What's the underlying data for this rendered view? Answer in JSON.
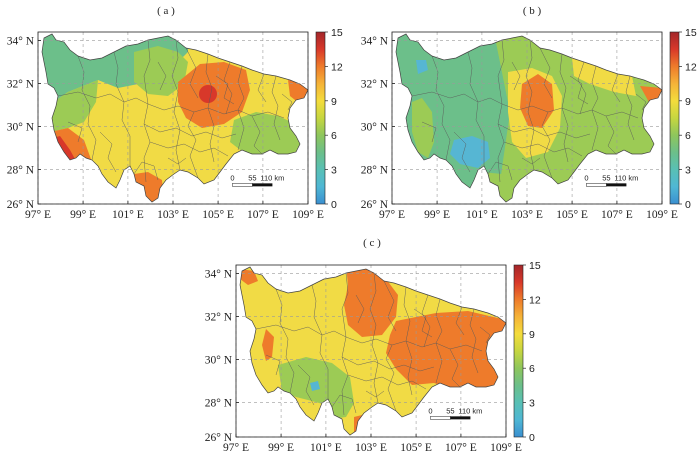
{
  "panels": [
    {
      "label": "( a )"
    },
    {
      "label": "( b )"
    },
    {
      "label": "( c )"
    }
  ],
  "x_ticks": [
    "97° E",
    "99° E",
    "101° E",
    "103° E",
    "105° E",
    "107° E",
    "109° E"
  ],
  "y_ticks": [
    "34° N",
    "32° N",
    "30° N",
    "28° N",
    "26° N"
  ],
  "colorbar": {
    "ticks": [
      "15",
      "12",
      "9",
      "6",
      "3",
      "0"
    ],
    "range": [
      0,
      15
    ],
    "colors": [
      "#3a8fd0",
      "#4fb7d4",
      "#59c0b5",
      "#6cbf8a",
      "#8ec65c",
      "#c6d640",
      "#f4dc3c",
      "#f5b338",
      "#ee7b2b",
      "#d8382a",
      "#a3262a"
    ]
  },
  "scalebar": {
    "ticks": [
      "0",
      "55",
      "110 km"
    ]
  },
  "zone_colors": {
    "teal": "#6cbf8a",
    "tealdeep": "#59b6a6",
    "green": "#9ccb55",
    "yellow": "#f1db45",
    "orange": "#ee7b2b",
    "red": "#d8382a",
    "blue": "#56b6d3"
  }
}
